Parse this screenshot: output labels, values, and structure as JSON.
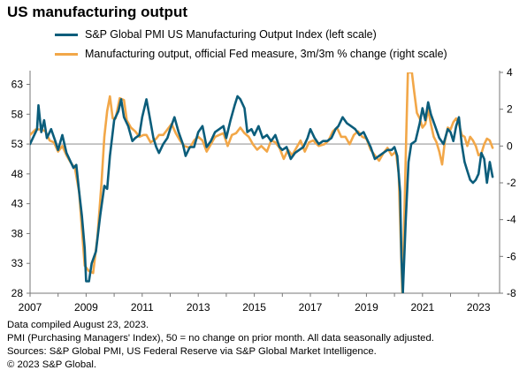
{
  "chart_data": {
    "type": "line",
    "title": "US manufacturing output",
    "x_ticks": [
      "2007",
      "2009",
      "2011",
      "2013",
      "2015",
      "2017",
      "2019",
      "2021",
      "2023"
    ],
    "x_range": [
      2007.0,
      2023.75
    ],
    "y_left": {
      "ticks": [
        "63",
        "58",
        "53",
        "48",
        "43",
        "38",
        "33",
        "28"
      ],
      "range": [
        28,
        65
      ],
      "reference_line": 53
    },
    "y_right": {
      "ticks": [
        "4",
        "2",
        "0",
        "-2",
        "-4",
        "-6",
        "-8"
      ],
      "range": [
        -8,
        4
      ]
    },
    "grid": false,
    "legend_position": "top",
    "series": [
      {
        "name": "S&P Global PMI US Manufacturing Output Index (left scale)",
        "axis": "left",
        "color": "#0b5d7b",
        "points": [
          [
            2007.0,
            53.0
          ],
          [
            2007.25,
            55.5
          ],
          [
            2007.3,
            59.5
          ],
          [
            2007.4,
            55.0
          ],
          [
            2007.5,
            57.0
          ],
          [
            2007.6,
            54.0
          ],
          [
            2007.75,
            55.5
          ],
          [
            2007.9,
            53.5
          ],
          [
            2008.0,
            52.0
          ],
          [
            2008.15,
            54.5
          ],
          [
            2008.3,
            51.5
          ],
          [
            2008.45,
            50.0
          ],
          [
            2008.55,
            49.0
          ],
          [
            2008.65,
            49.5
          ],
          [
            2008.75,
            45.0
          ],
          [
            2008.85,
            41.0
          ],
          [
            2008.95,
            35.5
          ],
          [
            2009.0,
            30.0
          ],
          [
            2009.1,
            30.0
          ],
          [
            2009.2,
            33.0
          ],
          [
            2009.35,
            35.0
          ],
          [
            2009.5,
            41.0
          ],
          [
            2009.65,
            46.0
          ],
          [
            2009.75,
            45.5
          ],
          [
            2009.85,
            51.0
          ],
          [
            2010.0,
            57.0
          ],
          [
            2010.15,
            58.5
          ],
          [
            2010.25,
            60.5
          ],
          [
            2010.35,
            57.5
          ],
          [
            2010.5,
            56.0
          ],
          [
            2010.65,
            53.5
          ],
          [
            2010.75,
            54.0
          ],
          [
            2010.9,
            54.5
          ],
          [
            2011.0,
            57.5
          ],
          [
            2011.15,
            60.5
          ],
          [
            2011.25,
            58.0
          ],
          [
            2011.4,
            54.0
          ],
          [
            2011.5,
            52.5
          ],
          [
            2011.6,
            51.5
          ],
          [
            2011.75,
            53.0
          ],
          [
            2011.9,
            54.0
          ],
          [
            2012.0,
            55.5
          ],
          [
            2012.15,
            57.5
          ],
          [
            2012.3,
            55.0
          ],
          [
            2012.45,
            53.0
          ],
          [
            2012.55,
            51.0
          ],
          [
            2012.7,
            52.5
          ],
          [
            2012.85,
            52.5
          ],
          [
            2013.0,
            55.0
          ],
          [
            2013.15,
            56.0
          ],
          [
            2013.3,
            52.5
          ],
          [
            2013.45,
            53.5
          ],
          [
            2013.6,
            55.0
          ],
          [
            2013.75,
            55.5
          ],
          [
            2013.9,
            56.0
          ],
          [
            2014.0,
            54.0
          ],
          [
            2014.15,
            57.0
          ],
          [
            2014.3,
            59.5
          ],
          [
            2014.4,
            61.0
          ],
          [
            2014.5,
            60.5
          ],
          [
            2014.65,
            59.0
          ],
          [
            2014.75,
            55.0
          ],
          [
            2014.9,
            55.5
          ],
          [
            2015.0,
            54.5
          ],
          [
            2015.15,
            56.0
          ],
          [
            2015.3,
            54.0
          ],
          [
            2015.45,
            54.5
          ],
          [
            2015.6,
            53.5
          ],
          [
            2015.75,
            54.5
          ],
          [
            2015.9,
            52.5
          ],
          [
            2016.0,
            52.0
          ],
          [
            2016.15,
            52.5
          ],
          [
            2016.3,
            50.5
          ],
          [
            2016.45,
            51.5
          ],
          [
            2016.6,
            52.0
          ],
          [
            2016.75,
            52.5
          ],
          [
            2016.9,
            54.0
          ],
          [
            2017.0,
            55.5
          ],
          [
            2017.15,
            54.0
          ],
          [
            2017.3,
            53.0
          ],
          [
            2017.45,
            53.5
          ],
          [
            2017.6,
            53.5
          ],
          [
            2017.75,
            54.0
          ],
          [
            2017.9,
            55.5
          ],
          [
            2018.0,
            56.0
          ],
          [
            2018.15,
            57.5
          ],
          [
            2018.3,
            56.5
          ],
          [
            2018.45,
            56.0
          ],
          [
            2018.6,
            55.5
          ],
          [
            2018.75,
            54.5
          ],
          [
            2018.9,
            55.0
          ],
          [
            2019.0,
            54.0
          ],
          [
            2019.15,
            52.5
          ],
          [
            2019.3,
            50.5
          ],
          [
            2019.45,
            51.0
          ],
          [
            2019.6,
            51.5
          ],
          [
            2019.75,
            52.0
          ],
          [
            2019.9,
            52.0
          ],
          [
            2020.0,
            52.5
          ],
          [
            2020.1,
            51.0
          ],
          [
            2020.2,
            45.0
          ],
          [
            2020.25,
            34.0
          ],
          [
            2020.3,
            28.0
          ],
          [
            2020.4,
            40.0
          ],
          [
            2020.5,
            50.0
          ],
          [
            2020.6,
            53.0
          ],
          [
            2020.75,
            53.5
          ],
          [
            2020.9,
            56.5
          ],
          [
            2021.0,
            59.0
          ],
          [
            2021.1,
            57.0
          ],
          [
            2021.2,
            60.0
          ],
          [
            2021.3,
            58.0
          ],
          [
            2021.45,
            56.0
          ],
          [
            2021.6,
            54.0
          ],
          [
            2021.75,
            53.0
          ],
          [
            2021.9,
            55.5
          ],
          [
            2022.0,
            55.0
          ],
          [
            2022.1,
            53.5
          ],
          [
            2022.2,
            56.0
          ],
          [
            2022.3,
            57.5
          ],
          [
            2022.4,
            53.0
          ],
          [
            2022.5,
            50.0
          ],
          [
            2022.6,
            48.5
          ],
          [
            2022.7,
            47.0
          ],
          [
            2022.8,
            46.5
          ],
          [
            2022.9,
            47.0
          ],
          [
            2023.0,
            48.0
          ],
          [
            2023.1,
            51.5
          ],
          [
            2023.2,
            50.5
          ],
          [
            2023.3,
            46.5
          ],
          [
            2023.4,
            50.0
          ],
          [
            2023.5,
            47.5
          ]
        ]
      },
      {
        "name": "Manufacturing output, official Fed measure, 3m/3m % change (right scale)",
        "axis": "right",
        "color": "#f2a748",
        "points": [
          [
            2007.0,
            0.6
          ],
          [
            2007.2,
            0.9
          ],
          [
            2007.4,
            0.9
          ],
          [
            2007.55,
            0.8
          ],
          [
            2007.7,
            0.3
          ],
          [
            2007.85,
            0.2
          ],
          [
            2008.0,
            -0.3
          ],
          [
            2008.15,
            0.0
          ],
          [
            2008.3,
            -0.5
          ],
          [
            2008.45,
            -0.9
          ],
          [
            2008.6,
            -1.2
          ],
          [
            2008.75,
            -2.5
          ],
          [
            2008.85,
            -4.5
          ],
          [
            2008.95,
            -6.5
          ],
          [
            2009.1,
            -6.8
          ],
          [
            2009.25,
            -6.9
          ],
          [
            2009.4,
            -5.0
          ],
          [
            2009.55,
            -2.0
          ],
          [
            2009.65,
            0.5
          ],
          [
            2009.75,
            1.9
          ],
          [
            2009.85,
            2.7
          ],
          [
            2009.95,
            1.5
          ],
          [
            2010.05,
            1.5
          ],
          [
            2010.2,
            2.6
          ],
          [
            2010.35,
            2.5
          ],
          [
            2010.45,
            1.4
          ],
          [
            2010.6,
            1.0
          ],
          [
            2010.75,
            0.8
          ],
          [
            2010.9,
            0.5
          ],
          [
            2011.05,
            0.6
          ],
          [
            2011.15,
            0.6
          ],
          [
            2011.3,
            0.2
          ],
          [
            2011.5,
            0.4
          ],
          [
            2011.6,
            0.6
          ],
          [
            2011.75,
            0.6
          ],
          [
            2011.9,
            0.9
          ],
          [
            2012.05,
            1.2
          ],
          [
            2012.2,
            0.7
          ],
          [
            2012.35,
            0.3
          ],
          [
            2012.5,
            0.0
          ],
          [
            2012.7,
            -0.1
          ],
          [
            2012.85,
            0.3
          ],
          [
            2013.0,
            0.5
          ],
          [
            2013.15,
            0.3
          ],
          [
            2013.3,
            -0.3
          ],
          [
            2013.45,
            0.1
          ],
          [
            2013.6,
            0.5
          ],
          [
            2013.75,
            0.6
          ],
          [
            2013.9,
            0.7
          ],
          [
            2014.05,
            0.0
          ],
          [
            2014.2,
            0.6
          ],
          [
            2014.35,
            0.7
          ],
          [
            2014.5,
            1.0
          ],
          [
            2014.65,
            0.7
          ],
          [
            2014.8,
            0.5
          ],
          [
            2014.95,
            0.1
          ],
          [
            2015.1,
            -0.2
          ],
          [
            2015.25,
            0.0
          ],
          [
            2015.45,
            -0.3
          ],
          [
            2015.6,
            0.3
          ],
          [
            2015.75,
            0.2
          ],
          [
            2015.9,
            -0.1
          ],
          [
            2016.05,
            -0.7
          ],
          [
            2016.2,
            -0.2
          ],
          [
            2016.35,
            -0.5
          ],
          [
            2016.5,
            -0.1
          ],
          [
            2016.65,
            0.3
          ],
          [
            2016.8,
            -0.3
          ],
          [
            2016.95,
            0.2
          ],
          [
            2017.1,
            0.3
          ],
          [
            2017.3,
            0.0
          ],
          [
            2017.5,
            0.1
          ],
          [
            2017.65,
            0.3
          ],
          [
            2017.8,
            0.8
          ],
          [
            2017.95,
            1.0
          ],
          [
            2018.1,
            0.5
          ],
          [
            2018.25,
            0.5
          ],
          [
            2018.4,
            0.1
          ],
          [
            2018.55,
            0.6
          ],
          [
            2018.7,
            0.8
          ],
          [
            2018.85,
            0.5
          ],
          [
            2019.0,
            0.4
          ],
          [
            2019.15,
            -0.2
          ],
          [
            2019.3,
            -0.5
          ],
          [
            2019.45,
            -0.8
          ],
          [
            2019.6,
            -0.4
          ],
          [
            2019.75,
            -0.1
          ],
          [
            2019.9,
            -0.5
          ],
          [
            2020.05,
            -0.3
          ],
          [
            2020.15,
            -1.5
          ],
          [
            2020.22,
            -5.0
          ],
          [
            2020.28,
            -8.0
          ],
          [
            2020.35,
            -4.0
          ],
          [
            2020.42,
            0.5
          ],
          [
            2020.48,
            4.0
          ],
          [
            2020.55,
            4.0
          ],
          [
            2020.62,
            4.0
          ],
          [
            2020.7,
            3.0
          ],
          [
            2020.8,
            1.8
          ],
          [
            2020.9,
            1.5
          ],
          [
            2021.0,
            1.0
          ],
          [
            2021.1,
            1.2
          ],
          [
            2021.2,
            2.0
          ],
          [
            2021.3,
            1.2
          ],
          [
            2021.4,
            0.5
          ],
          [
            2021.5,
            0.2
          ],
          [
            2021.6,
            -0.3
          ],
          [
            2021.7,
            -1.0
          ],
          [
            2021.8,
            0.3
          ],
          [
            2021.9,
            1.0
          ],
          [
            2022.0,
            0.9
          ],
          [
            2022.1,
            1.3
          ],
          [
            2022.2,
            1.5
          ],
          [
            2022.3,
            1.2
          ],
          [
            2022.4,
            0.6
          ],
          [
            2022.5,
            0.5
          ],
          [
            2022.6,
            0.0
          ],
          [
            2022.7,
            0.5
          ],
          [
            2022.8,
            0.3
          ],
          [
            2022.9,
            0.0
          ],
          [
            2023.0,
            -0.5
          ],
          [
            2023.1,
            -0.4
          ],
          [
            2023.2,
            0.1
          ],
          [
            2023.3,
            0.4
          ],
          [
            2023.4,
            0.3
          ],
          [
            2023.5,
            -0.1
          ]
        ]
      }
    ]
  },
  "footnotes": [
    "Data compiled August 23, 2023.",
    "PMI (Purchasing Managers' Index), 50 = no change on prior month. All data seasonally adjusted.",
    "Sources: S&P Global PMI, US Federal Reserve via S&P Global Market Intelligence.",
    "© 2023 S&P Global."
  ]
}
